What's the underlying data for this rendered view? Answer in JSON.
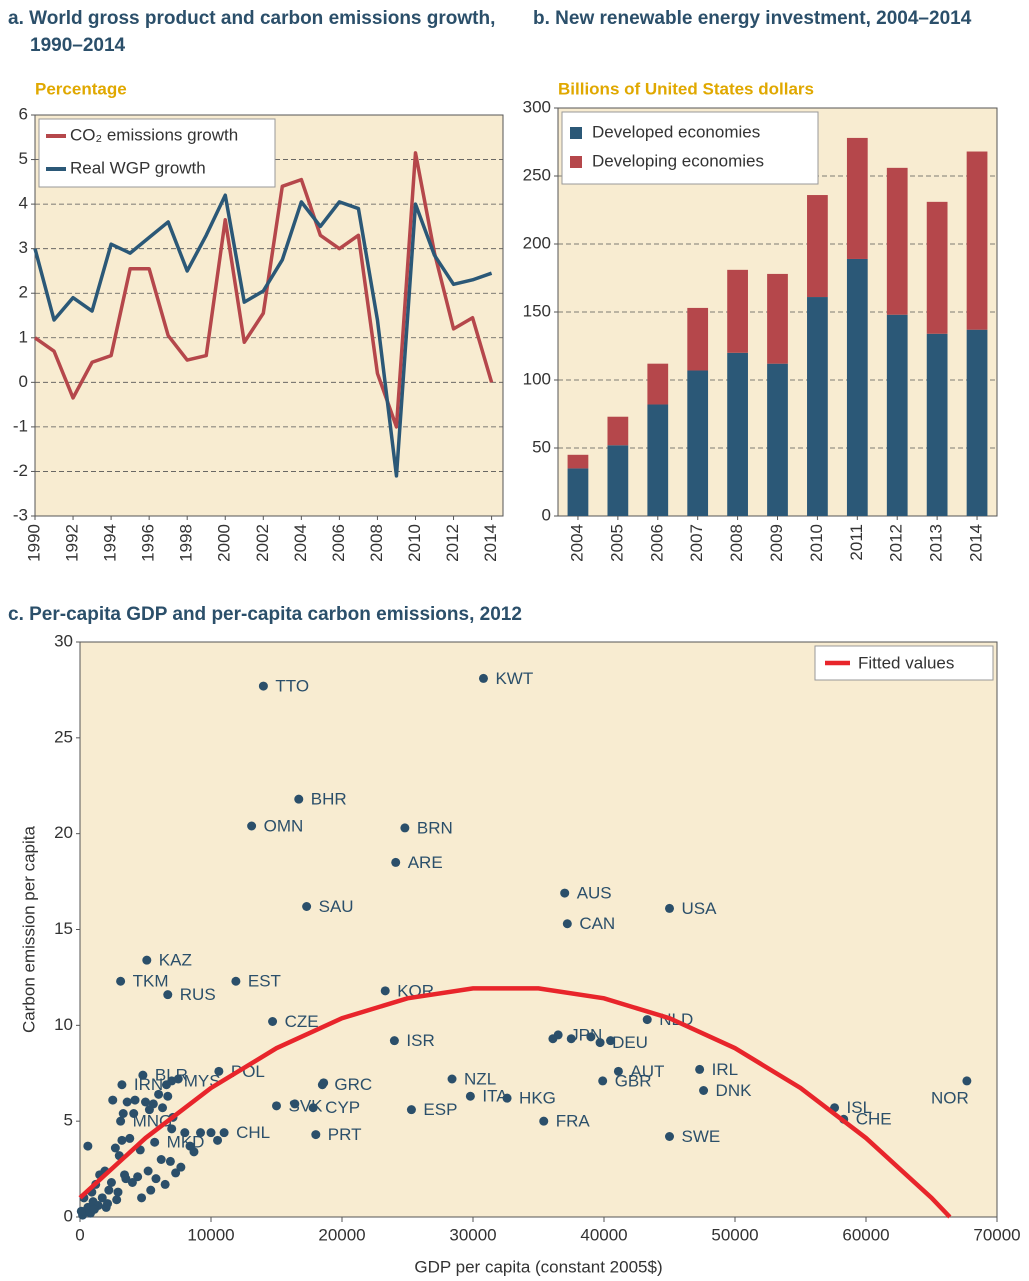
{
  "chart_data": [
    {
      "type": "line",
      "title": "a. World gross product and carbon emissions growth, 1990–2014",
      "ylabel": "Percentage",
      "x": [
        1990,
        1991,
        1992,
        1993,
        1994,
        1995,
        1996,
        1997,
        1998,
        1999,
        2000,
        2001,
        2002,
        2003,
        2004,
        2005,
        2006,
        2007,
        2008,
        2009,
        2010,
        2011,
        2012,
        2013,
        2014
      ],
      "series": [
        {
          "name": "CO₂ emissions growth",
          "color": "#b5474b",
          "values": [
            1.0,
            0.7,
            -0.35,
            0.45,
            0.6,
            2.55,
            2.55,
            1.05,
            0.5,
            0.6,
            3.65,
            0.9,
            1.55,
            4.4,
            4.55,
            3.3,
            3.0,
            3.3,
            0.2,
            -1.0,
            5.15,
            2.9,
            1.2,
            1.45,
            0.0
          ]
        },
        {
          "name": "Real WGP growth",
          "color": "#2b5877",
          "values": [
            3.0,
            1.4,
            1.9,
            1.6,
            3.1,
            2.9,
            3.25,
            3.6,
            2.5,
            3.3,
            4.2,
            1.8,
            2.05,
            2.75,
            4.05,
            3.5,
            4.05,
            3.9,
            1.4,
            -2.1,
            4.0,
            2.85,
            2.2,
            2.3,
            2.45
          ]
        }
      ],
      "xlim": [
        1990,
        2014.6
      ],
      "xticks": [
        1990,
        1992,
        1994,
        1996,
        1998,
        2000,
        2002,
        2004,
        2006,
        2008,
        2010,
        2012,
        2014
      ],
      "ylim": [
        -3,
        6
      ],
      "yticks": [
        -3,
        -2,
        -1,
        0,
        1,
        2,
        3,
        4,
        5,
        6
      ],
      "grid": true,
      "legend": "upper left"
    },
    {
      "type": "bar",
      "stacked": true,
      "title": "b. New renewable energy investment, 2004–2014",
      "ylabel": "Billions of United States dollars",
      "categories": [
        "2004",
        "2005",
        "2006",
        "2007",
        "2008",
        "2009",
        "2010",
        "2011",
        "2012",
        "2013",
        "2014"
      ],
      "series": [
        {
          "name": "Developed economies",
          "color": "#2b5877",
          "values": [
            35,
            52,
            82,
            107,
            120,
            112,
            161,
            189,
            148,
            134,
            137
          ]
        },
        {
          "name": "Developing economies",
          "color": "#b5474b",
          "values": [
            10,
            21,
            30,
            46,
            61,
            66,
            75,
            89,
            108,
            97,
            131
          ]
        }
      ],
      "ylim": [
        0,
        300
      ],
      "yticks": [
        0,
        50,
        100,
        150,
        200,
        250,
        300
      ],
      "grid": true,
      "legend": "upper left"
    },
    {
      "type": "scatter",
      "title": "c. Per-capita GDP and per-capita carbon emissions, 2012",
      "xlabel": "GDP per capita (constant 2005$)",
      "ylabel": "Carbon emission per capita",
      "color": "#2b4f6a",
      "x": [
        14000,
        30800,
        16700,
        13100,
        24800,
        24100,
        17300,
        37000,
        37200,
        45000,
        5100,
        3100,
        6700,
        11900,
        23300,
        14700,
        24000,
        36500,
        39700,
        43300,
        10600,
        4800,
        3200,
        7000,
        3100,
        5700,
        11000,
        18500,
        15000,
        17800,
        18000,
        25300,
        28400,
        29800,
        32600,
        35400,
        41100,
        39900,
        47300,
        47600,
        45000,
        57600,
        58300,
        67700,
        200,
        400,
        600,
        800,
        1000,
        1200,
        1400,
        1500,
        1700,
        1900,
        2000,
        2200,
        2400,
        2500,
        2700,
        2800,
        3000,
        3200,
        3300,
        3500,
        3600,
        3800,
        4000,
        4200,
        4400,
        4700,
        5000,
        5200,
        5400,
        5600,
        5800,
        6000,
        6200,
        6500,
        6700,
        6900,
        7000,
        7300,
        7500,
        7700,
        8000,
        8400,
        8700,
        9200,
        10000,
        10500,
        600,
        300,
        100,
        900,
        1100,
        2100,
        2900,
        3400,
        4600,
        5300,
        6300,
        4100,
        7100,
        6600,
        16400,
        18600,
        36100,
        37500,
        39000,
        40500
      ],
      "y": [
        27.7,
        28.1,
        21.8,
        20.4,
        20.3,
        18.5,
        16.2,
        16.9,
        15.3,
        16.1,
        13.4,
        12.3,
        11.6,
        12.3,
        11.8,
        10.2,
        9.2,
        9.5,
        9.1,
        10.3,
        7.6,
        7.4,
        6.9,
        7.1,
        5.0,
        3.9,
        4.4,
        6.9,
        5.8,
        5.7,
        4.3,
        5.6,
        7.2,
        6.3,
        6.2,
        5.0,
        7.6,
        7.1,
        7.7,
        6.6,
        4.2,
        5.7,
        5.1,
        7.1,
        0.1,
        0.3,
        0.5,
        0.2,
        0.8,
        1.7,
        0.6,
        2.2,
        1.0,
        2.4,
        0.5,
        1.4,
        1.8,
        6.1,
        3.6,
        0.9,
        3.2,
        4.0,
        5.4,
        2.0,
        6.0,
        4.1,
        1.8,
        6.1,
        2.1,
        1.0,
        6.0,
        2.4,
        1.4,
        5.9,
        2.0,
        6.4,
        3.0,
        1.7,
        6.3,
        2.9,
        4.6,
        2.3,
        7.2,
        2.6,
        4.4,
        3.7,
        3.4,
        4.4,
        4.4,
        4.0,
        3.7,
        1.0,
        0.3,
        1.3,
        0.4,
        0.7,
        1.3,
        2.2,
        3.5,
        5.6,
        5.7,
        5.4,
        5.2,
        6.9,
        5.9,
        7.0,
        9.3,
        9.3,
        9.4,
        9.2
      ],
      "labels": [
        "TTO",
        "KWT",
        "BHR",
        "OMN",
        "BRN",
        "ARE",
        "SAU",
        "AUS",
        "CAN",
        "USA",
        "KAZ",
        "TKM",
        "RUS",
        "EST",
        "KOR",
        "CZE",
        "ISR",
        "JPN",
        "DEU",
        "NLD",
        "POL",
        "BLR",
        "IRN",
        "MYS",
        "MNG",
        "MKD",
        "CHL",
        "GRC",
        "SVK",
        "CYP",
        "PRT",
        "ESP",
        "NZL",
        "ITA",
        "HKG",
        "FRA",
        "AUT",
        "GBR",
        "IRL",
        "DNK",
        "SWE",
        "ISL",
        "CHE",
        "NOR",
        null,
        null,
        null,
        null,
        null,
        null,
        null,
        null,
        null,
        null,
        null,
        null,
        null,
        null,
        null,
        null,
        null,
        null,
        null,
        null,
        null,
        null,
        null,
        null,
        null,
        null,
        null,
        null,
        null,
        null,
        null,
        null,
        null,
        null,
        null,
        null,
        null,
        null,
        null,
        null,
        null,
        null,
        null,
        null,
        null,
        null,
        null,
        null,
        null,
        null,
        null,
        null,
        null,
        null,
        null,
        null,
        null,
        null,
        null,
        null,
        null,
        null,
        null,
        null,
        null,
        null
      ],
      "fit": {
        "name": "Fitted values",
        "color": "#e8252b",
        "x": [
          0,
          5000,
          10000,
          15000,
          20000,
          25000,
          30000,
          35000,
          40000,
          45000,
          50000,
          55000,
          60000,
          65000,
          66400
        ],
        "y": [
          1.0,
          4.12,
          6.73,
          8.81,
          10.37,
          11.41,
          11.93,
          11.93,
          11.41,
          10.37,
          8.81,
          6.73,
          4.12,
          1.0,
          0
        ]
      },
      "xlim": [
        0,
        70000
      ],
      "xticks": [
        0,
        10000,
        20000,
        30000,
        40000,
        50000,
        60000,
        70000
      ],
      "ylim": [
        0,
        30
      ],
      "yticks": [
        0,
        5,
        10,
        15,
        20,
        25,
        30
      ],
      "grid": false,
      "legend": "upper right"
    }
  ]
}
